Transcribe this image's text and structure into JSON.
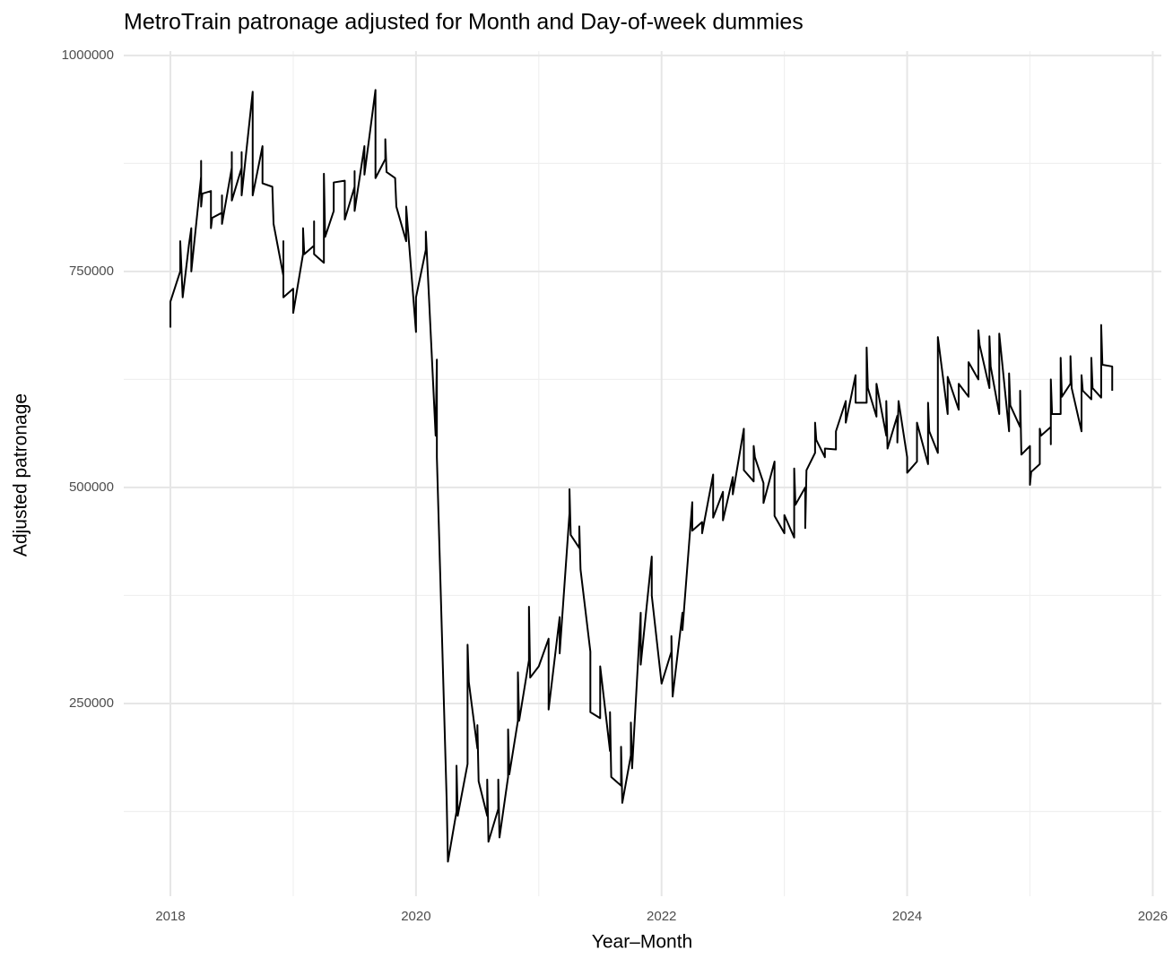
{
  "chart_data": {
    "type": "line",
    "title": "MetroTrain patronage adjusted for Month and Day-of-week dummies",
    "x_label": "Year–Month",
    "y_label": "Adjusted patronage",
    "color": "#000000",
    "grid": true,
    "xlim": [
      2017.62,
      2026.07
    ],
    "ylim": [
      27000,
      1005000
    ],
    "xticks": [
      2018,
      2020,
      2022,
      2024,
      2026
    ],
    "xminorticks": [
      2019,
      2021,
      2023,
      2025
    ],
    "yticks": [
      250000,
      500000,
      750000,
      1000000
    ],
    "yminorticks": [
      125000,
      375000,
      625000,
      875000
    ],
    "x": [
      2018.0,
      2018.0,
      2018.08,
      2018.08,
      2018.1,
      2018.15,
      2018.17,
      2018.17,
      2018.25,
      2018.25,
      2018.25,
      2018.26,
      2018.33,
      2018.33,
      2018.34,
      2018.42,
      2018.42,
      2018.42,
      2018.5,
      2018.5,
      2018.5,
      2018.58,
      2018.58,
      2018.58,
      2018.67,
      2018.67,
      2018.75,
      2018.75,
      2018.83,
      2018.84,
      2018.92,
      2018.92,
      2018.92,
      2019.0,
      2019.0,
      2019.08,
      2019.08,
      2019.09,
      2019.17,
      2019.17,
      2019.17,
      2019.25,
      2019.25,
      2019.26,
      2019.33,
      2019.33,
      2019.42,
      2019.42,
      2019.5,
      2019.5,
      2019.5,
      2019.58,
      2019.58,
      2019.67,
      2019.67,
      2019.75,
      2019.75,
      2019.76,
      2019.83,
      2019.84,
      2019.92,
      2019.92,
      2020.0,
      2020.0,
      2020.08,
      2020.08,
      2020.16,
      2020.17,
      2020.17,
      2020.25,
      2020.26,
      2020.33,
      2020.33,
      2020.34,
      2020.42,
      2020.42,
      2020.43,
      2020.5,
      2020.5,
      2020.51,
      2020.58,
      2020.58,
      2020.59,
      2020.67,
      2020.67,
      2020.68,
      2020.75,
      2020.75,
      2020.76,
      2020.83,
      2020.83,
      2020.84,
      2020.92,
      2020.92,
      2020.93,
      2021.0,
      2021.08,
      2021.08,
      2021.17,
      2021.17,
      2021.25,
      2021.25,
      2021.26,
      2021.33,
      2021.33,
      2021.34,
      2021.42,
      2021.42,
      2021.5,
      2021.5,
      2021.58,
      2021.58,
      2021.59,
      2021.67,
      2021.67,
      2021.68,
      2021.75,
      2021.75,
      2021.76,
      2021.83,
      2021.83,
      2021.92,
      2021.92,
      2022.0,
      2022.08,
      2022.08,
      2022.09,
      2022.17,
      2022.17,
      2022.25,
      2022.25,
      2022.33,
      2022.33,
      2022.42,
      2022.42,
      2022.5,
      2022.5,
      2022.58,
      2022.58,
      2022.67,
      2022.67,
      2022.75,
      2022.75,
      2022.76,
      2022.83,
      2022.83,
      2022.92,
      2022.92,
      2023.0,
      2023.0,
      2023.08,
      2023.08,
      2023.09,
      2023.17,
      2023.17,
      2023.18,
      2023.25,
      2023.25,
      2023.26,
      2023.33,
      2023.33,
      2023.42,
      2023.42,
      2023.5,
      2023.5,
      2023.58,
      2023.58,
      2023.67,
      2023.67,
      2023.68,
      2023.75,
      2023.75,
      2023.83,
      2023.83,
      2023.84,
      2023.92,
      2023.92,
      2023.93,
      2024.0,
      2024.0,
      2024.08,
      2024.08,
      2024.17,
      2024.17,
      2024.18,
      2024.25,
      2024.25,
      2024.33,
      2024.33,
      2024.42,
      2024.42,
      2024.5,
      2024.5,
      2024.58,
      2024.58,
      2024.59,
      2024.67,
      2024.67,
      2024.68,
      2024.75,
      2024.75,
      2024.83,
      2024.83,
      2024.84,
      2024.92,
      2024.92,
      2024.93,
      2025.0,
      2025.0,
      2025.01,
      2025.08,
      2025.08,
      2025.09,
      2025.17,
      2025.17,
      2025.17,
      2025.18,
      2025.25,
      2025.25,
      2025.26,
      2025.33,
      2025.33,
      2025.34,
      2025.42,
      2025.42,
      2025.43,
      2025.5,
      2025.5,
      2025.51,
      2025.58,
      2025.58,
      2025.59,
      2025.67,
      2025.67
    ],
    "values": [
      685000,
      715000,
      750000,
      785000,
      720000,
      780000,
      800000,
      750000,
      860000,
      878000,
      825000,
      840000,
      843000,
      800000,
      812000,
      818000,
      838000,
      805000,
      870000,
      888000,
      832000,
      870000,
      888000,
      838000,
      958000,
      838000,
      895000,
      852000,
      848000,
      805000,
      745000,
      785000,
      720000,
      730000,
      702000,
      770000,
      800000,
      770000,
      780000,
      808000,
      770000,
      760000,
      863000,
      790000,
      820000,
      853000,
      855000,
      810000,
      848000,
      866000,
      820000,
      895000,
      862000,
      960000,
      858000,
      880000,
      903000,
      865000,
      858000,
      825000,
      785000,
      825000,
      680000,
      720000,
      775000,
      796000,
      560000,
      648000,
      535000,
      137000,
      67000,
      125000,
      178000,
      120000,
      180000,
      318000,
      275000,
      198000,
      225000,
      160000,
      120000,
      162000,
      90000,
      128000,
      162000,
      95000,
      165000,
      220000,
      168000,
      230000,
      286000,
      230000,
      300000,
      362000,
      280000,
      293000,
      325000,
      243000,
      350000,
      308000,
      470000,
      498000,
      445000,
      430000,
      455000,
      405000,
      310000,
      240000,
      233000,
      293000,
      195000,
      240000,
      165000,
      155000,
      200000,
      135000,
      190000,
      228000,
      175000,
      355000,
      295000,
      420000,
      375000,
      273000,
      310000,
      328000,
      258000,
      355000,
      335000,
      483000,
      450000,
      460000,
      447000,
      515000,
      465000,
      495000,
      462000,
      512000,
      492000,
      568000,
      520000,
      507000,
      548000,
      535000,
      505000,
      482000,
      530000,
      467000,
      447000,
      468000,
      442000,
      522000,
      480000,
      500000,
      453000,
      520000,
      540000,
      575000,
      555000,
      535000,
      545000,
      544000,
      565000,
      600000,
      575000,
      630000,
      598000,
      598000,
      662000,
      615000,
      582000,
      620000,
      560000,
      600000,
      545000,
      583000,
      552000,
      600000,
      535000,
      517000,
      530000,
      575000,
      527000,
      598000,
      565000,
      540000,
      674000,
      585000,
      628000,
      590000,
      620000,
      605000,
      645000,
      625000,
      682000,
      665000,
      615000,
      675000,
      640000,
      585000,
      678000,
      565000,
      632000,
      595000,
      570000,
      612000,
      538000,
      548000,
      503000,
      518000,
      527000,
      568000,
      560000,
      570000,
      550000,
      625000,
      585000,
      585000,
      650000,
      605000,
      620000,
      652000,
      615000,
      565000,
      630000,
      612000,
      602000,
      650000,
      615000,
      604000,
      688000,
      642000,
      640000,
      612000
    ]
  }
}
